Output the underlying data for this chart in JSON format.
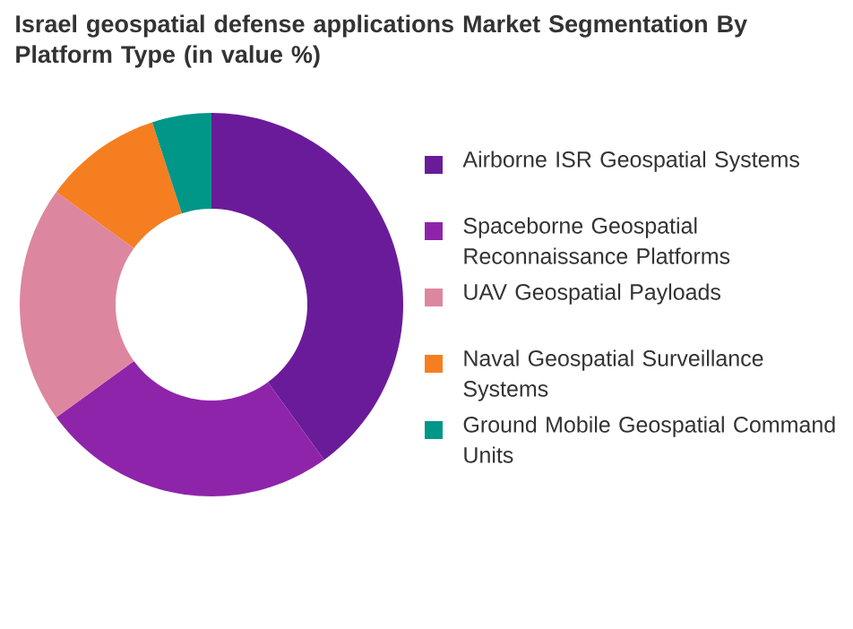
{
  "chart_data": {
    "type": "donut",
    "title": "Israel geospatial defense applications Market Segmentation By Platform Type (in value %)",
    "categories": [
      "Airborne ISR Geospatial Systems",
      "Spaceborne Geospatial Reconnaissance Platforms",
      "UAV Geospatial Payloads",
      "Naval Geospatial Surveillance Systems",
      "Ground Mobile Geospatial Command Units"
    ],
    "values": [
      40,
      25,
      20,
      10,
      5
    ],
    "colors": [
      "#6a1b9a",
      "#8e24aa",
      "#dd869f",
      "#f57f20",
      "#009688"
    ],
    "legend": "right"
  }
}
